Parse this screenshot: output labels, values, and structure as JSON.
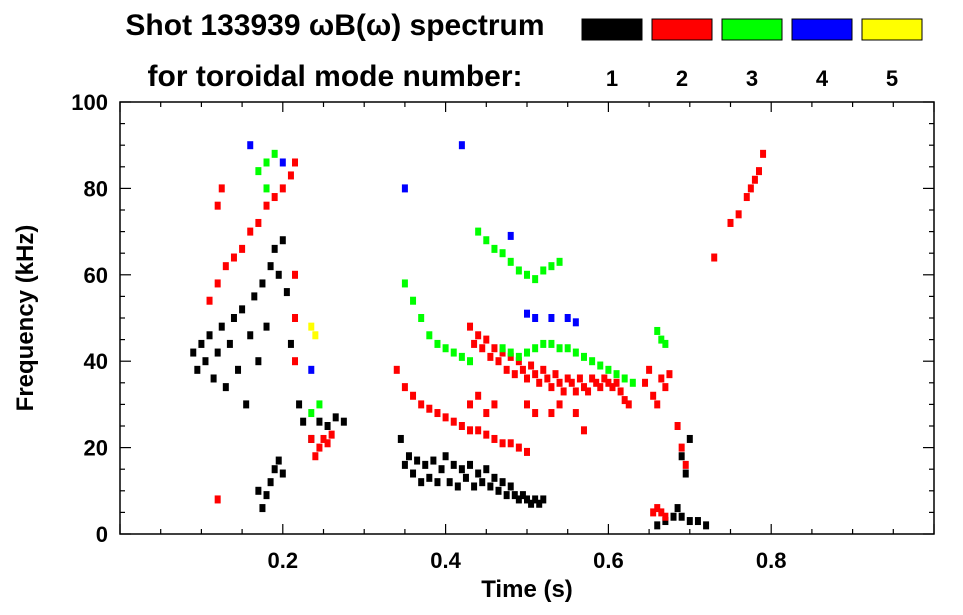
{
  "chart_data": {
    "type": "scatter",
    "title_line1": "Shot 133939 ωB(ω) spectrum",
    "title_line2": "for toroidal mode number:",
    "xlabel": "Time (s)",
    "ylabel": "Frequency (kHz)",
    "xlim": [
      0.0,
      1.0
    ],
    "ylim": [
      0,
      100
    ],
    "x_ticks": [
      0.2,
      0.4,
      0.6,
      0.8
    ],
    "x_tick_labels": [
      "0.2",
      "0.4",
      "0.6",
      "0.8"
    ],
    "y_ticks": [
      0,
      20,
      40,
      60,
      80,
      100
    ],
    "y_tick_labels": [
      "0",
      "20",
      "40",
      "60",
      "80",
      "100"
    ],
    "legend": [
      {
        "label": "1",
        "color": "#000000"
      },
      {
        "label": "2",
        "color": "#ff0000"
      },
      {
        "label": "3",
        "color": "#00ff00"
      },
      {
        "label": "4",
        "color": "#0000ff"
      },
      {
        "label": "5",
        "color": "#ffff00"
      }
    ],
    "series": [
      {
        "name": "n=1",
        "color": "#000000",
        "points": [
          [
            0.09,
            42
          ],
          [
            0.095,
            38
          ],
          [
            0.1,
            44
          ],
          [
            0.105,
            40
          ],
          [
            0.11,
            46
          ],
          [
            0.115,
            36
          ],
          [
            0.12,
            42
          ],
          [
            0.125,
            48
          ],
          [
            0.13,
            34
          ],
          [
            0.135,
            44
          ],
          [
            0.14,
            50
          ],
          [
            0.145,
            38
          ],
          [
            0.15,
            52
          ],
          [
            0.155,
            30
          ],
          [
            0.16,
            46
          ],
          [
            0.165,
            55
          ],
          [
            0.17,
            40
          ],
          [
            0.175,
            58
          ],
          [
            0.18,
            48
          ],
          [
            0.185,
            62
          ],
          [
            0.19,
            66
          ],
          [
            0.195,
            60
          ],
          [
            0.2,
            68
          ],
          [
            0.205,
            56
          ],
          [
            0.21,
            44
          ],
          [
            0.22,
            30
          ],
          [
            0.225,
            26
          ],
          [
            0.235,
            22
          ],
          [
            0.245,
            26
          ],
          [
            0.255,
            25
          ],
          [
            0.265,
            27
          ],
          [
            0.275,
            26
          ],
          [
            0.17,
            10
          ],
          [
            0.175,
            6
          ],
          [
            0.18,
            9
          ],
          [
            0.185,
            12
          ],
          [
            0.19,
            15
          ],
          [
            0.195,
            17
          ],
          [
            0.2,
            14
          ],
          [
            0.345,
            22
          ],
          [
            0.35,
            16
          ],
          [
            0.355,
            18
          ],
          [
            0.36,
            14
          ],
          [
            0.365,
            17
          ],
          [
            0.37,
            12
          ],
          [
            0.375,
            16
          ],
          [
            0.38,
            13
          ],
          [
            0.385,
            17
          ],
          [
            0.39,
            12
          ],
          [
            0.395,
            15
          ],
          [
            0.4,
            18
          ],
          [
            0.405,
            12
          ],
          [
            0.41,
            16
          ],
          [
            0.415,
            11
          ],
          [
            0.42,
            15
          ],
          [
            0.425,
            13
          ],
          [
            0.43,
            16
          ],
          [
            0.435,
            11
          ],
          [
            0.44,
            14
          ],
          [
            0.445,
            12
          ],
          [
            0.45,
            15
          ],
          [
            0.455,
            11
          ],
          [
            0.46,
            13
          ],
          [
            0.465,
            10
          ],
          [
            0.47,
            12
          ],
          [
            0.475,
            9
          ],
          [
            0.48,
            11
          ],
          [
            0.485,
            9
          ],
          [
            0.49,
            8
          ],
          [
            0.495,
            9
          ],
          [
            0.5,
            8
          ],
          [
            0.505,
            7
          ],
          [
            0.51,
            8
          ],
          [
            0.515,
            7
          ],
          [
            0.52,
            8
          ],
          [
            0.66,
            2
          ],
          [
            0.67,
            3
          ],
          [
            0.68,
            4
          ],
          [
            0.685,
            6
          ],
          [
            0.69,
            4
          ],
          [
            0.7,
            3
          ],
          [
            0.71,
            3
          ],
          [
            0.72,
            2
          ],
          [
            0.695,
            14
          ],
          [
            0.7,
            22
          ],
          [
            0.69,
            18
          ]
        ]
      },
      {
        "name": "n=2",
        "color": "#ff0000",
        "points": [
          [
            0.11,
            54
          ],
          [
            0.12,
            58
          ],
          [
            0.13,
            62
          ],
          [
            0.14,
            64
          ],
          [
            0.15,
            66
          ],
          [
            0.16,
            70
          ],
          [
            0.17,
            72
          ],
          [
            0.18,
            76
          ],
          [
            0.19,
            78
          ],
          [
            0.2,
            80
          ],
          [
            0.21,
            83
          ],
          [
            0.215,
            86
          ],
          [
            0.12,
            76
          ],
          [
            0.125,
            80
          ],
          [
            0.215,
            60
          ],
          [
            0.215,
            50
          ],
          [
            0.215,
            40
          ],
          [
            0.235,
            22
          ],
          [
            0.24,
            18
          ],
          [
            0.245,
            20
          ],
          [
            0.25,
            22
          ],
          [
            0.255,
            21
          ],
          [
            0.26,
            23
          ],
          [
            0.12,
            8
          ],
          [
            0.34,
            38
          ],
          [
            0.35,
            34
          ],
          [
            0.36,
            32
          ],
          [
            0.37,
            30
          ],
          [
            0.38,
            29
          ],
          [
            0.39,
            28
          ],
          [
            0.4,
            27
          ],
          [
            0.41,
            26
          ],
          [
            0.42,
            25
          ],
          [
            0.43,
            24
          ],
          [
            0.44,
            24
          ],
          [
            0.45,
            23
          ],
          [
            0.46,
            22
          ],
          [
            0.47,
            21
          ],
          [
            0.48,
            21
          ],
          [
            0.49,
            20
          ],
          [
            0.5,
            19
          ],
          [
            0.43,
            48
          ],
          [
            0.435,
            44
          ],
          [
            0.44,
            46
          ],
          [
            0.445,
            43
          ],
          [
            0.45,
            45
          ],
          [
            0.455,
            41
          ],
          [
            0.46,
            43
          ],
          [
            0.465,
            40
          ],
          [
            0.47,
            42
          ],
          [
            0.475,
            38
          ],
          [
            0.48,
            41
          ],
          [
            0.485,
            37
          ],
          [
            0.49,
            40
          ],
          [
            0.495,
            38
          ],
          [
            0.5,
            36
          ],
          [
            0.505,
            39
          ],
          [
            0.51,
            37
          ],
          [
            0.515,
            35
          ],
          [
            0.52,
            38
          ],
          [
            0.525,
            36
          ],
          [
            0.53,
            34
          ],
          [
            0.535,
            37
          ],
          [
            0.54,
            35
          ],
          [
            0.545,
            33
          ],
          [
            0.55,
            36
          ],
          [
            0.555,
            35
          ],
          [
            0.56,
            33
          ],
          [
            0.565,
            36
          ],
          [
            0.57,
            34
          ],
          [
            0.575,
            33
          ],
          [
            0.58,
            36
          ],
          [
            0.585,
            35
          ],
          [
            0.59,
            34
          ],
          [
            0.595,
            36
          ],
          [
            0.6,
            35
          ],
          [
            0.605,
            34
          ],
          [
            0.61,
            35
          ],
          [
            0.615,
            33
          ],
          [
            0.62,
            31
          ],
          [
            0.625,
            30
          ],
          [
            0.43,
            30
          ],
          [
            0.44,
            32
          ],
          [
            0.45,
            28
          ],
          [
            0.46,
            30
          ],
          [
            0.5,
            30
          ],
          [
            0.51,
            28
          ],
          [
            0.53,
            28
          ],
          [
            0.54,
            30
          ],
          [
            0.56,
            28
          ],
          [
            0.57,
            24
          ],
          [
            0.645,
            35
          ],
          [
            0.65,
            38
          ],
          [
            0.655,
            32
          ],
          [
            0.66,
            30
          ],
          [
            0.665,
            36
          ],
          [
            0.67,
            34
          ],
          [
            0.675,
            37
          ],
          [
            0.655,
            5
          ],
          [
            0.66,
            6
          ],
          [
            0.665,
            5
          ],
          [
            0.67,
            4
          ],
          [
            0.685,
            25
          ],
          [
            0.69,
            20
          ],
          [
            0.695,
            16
          ],
          [
            0.75,
            72
          ],
          [
            0.76,
            74
          ],
          [
            0.77,
            78
          ],
          [
            0.775,
            80
          ],
          [
            0.78,
            82
          ],
          [
            0.785,
            84
          ],
          [
            0.79,
            88
          ],
          [
            0.73,
            64
          ]
        ]
      },
      {
        "name": "n=3",
        "color": "#00ff00",
        "points": [
          [
            0.17,
            84
          ],
          [
            0.18,
            86
          ],
          [
            0.19,
            88
          ],
          [
            0.18,
            80
          ],
          [
            0.245,
            30
          ],
          [
            0.235,
            28
          ],
          [
            0.35,
            58
          ],
          [
            0.36,
            54
          ],
          [
            0.37,
            50
          ],
          [
            0.38,
            46
          ],
          [
            0.39,
            44
          ],
          [
            0.4,
            43
          ],
          [
            0.41,
            42
          ],
          [
            0.42,
            41
          ],
          [
            0.43,
            40
          ],
          [
            0.44,
            70
          ],
          [
            0.45,
            68
          ],
          [
            0.46,
            66
          ],
          [
            0.47,
            65
          ],
          [
            0.48,
            63
          ],
          [
            0.49,
            61
          ],
          [
            0.5,
            60
          ],
          [
            0.51,
            59
          ],
          [
            0.52,
            61
          ],
          [
            0.53,
            62
          ],
          [
            0.54,
            63
          ],
          [
            0.47,
            43
          ],
          [
            0.48,
            42
          ],
          [
            0.49,
            41
          ],
          [
            0.5,
            42
          ],
          [
            0.51,
            43
          ],
          [
            0.52,
            44
          ],
          [
            0.53,
            44
          ],
          [
            0.54,
            43
          ],
          [
            0.55,
            43
          ],
          [
            0.56,
            42
          ],
          [
            0.57,
            41
          ],
          [
            0.58,
            40
          ],
          [
            0.59,
            39
          ],
          [
            0.6,
            38
          ],
          [
            0.61,
            37
          ],
          [
            0.62,
            36
          ],
          [
            0.63,
            35
          ],
          [
            0.66,
            47
          ],
          [
            0.665,
            45
          ],
          [
            0.67,
            44
          ]
        ]
      },
      {
        "name": "n=4",
        "color": "#0000ff",
        "points": [
          [
            0.16,
            90
          ],
          [
            0.2,
            86
          ],
          [
            0.235,
            38
          ],
          [
            0.35,
            80
          ],
          [
            0.42,
            90
          ],
          [
            0.48,
            69
          ],
          [
            0.5,
            51
          ],
          [
            0.51,
            50
          ],
          [
            0.53,
            50
          ],
          [
            0.55,
            50
          ],
          [
            0.56,
            49
          ]
        ]
      },
      {
        "name": "n=5",
        "color": "#ffff00",
        "points": [
          [
            0.235,
            48
          ],
          [
            0.24,
            46
          ]
        ]
      }
    ]
  }
}
